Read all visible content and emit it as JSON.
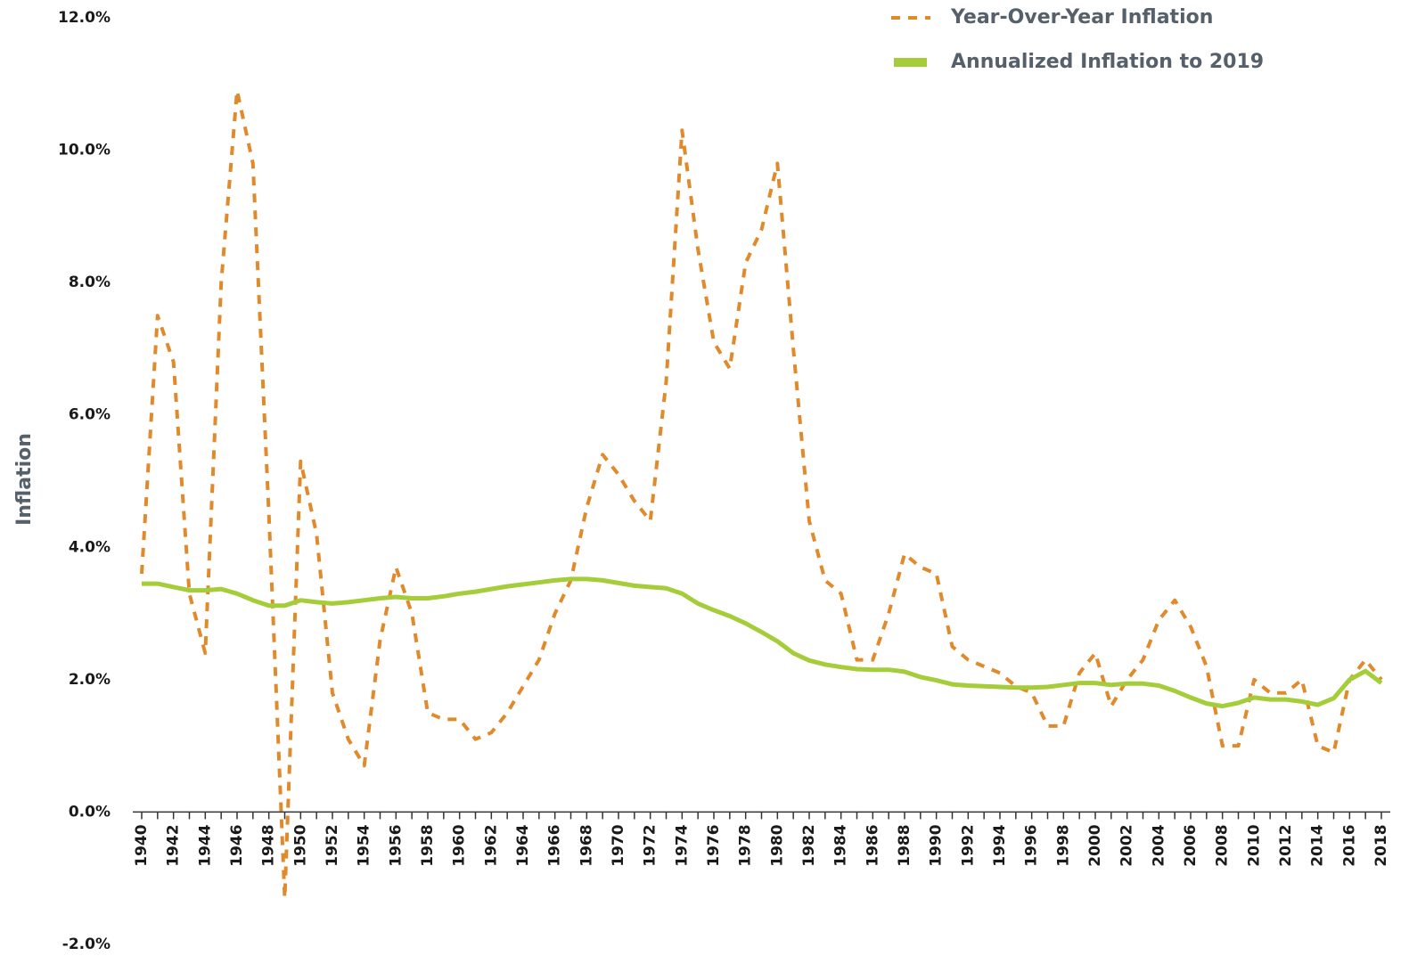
{
  "chart_data": {
    "type": "line",
    "y_label": "Inflation",
    "x": [
      1940,
      1941,
      1942,
      1943,
      1944,
      1945,
      1946,
      1947,
      1948,
      1949,
      1950,
      1951,
      1952,
      1953,
      1954,
      1955,
      1956,
      1957,
      1958,
      1959,
      1960,
      1961,
      1962,
      1963,
      1964,
      1965,
      1966,
      1967,
      1968,
      1969,
      1970,
      1971,
      1972,
      1973,
      1974,
      1975,
      1976,
      1977,
      1978,
      1979,
      1980,
      1981,
      1982,
      1983,
      1984,
      1985,
      1986,
      1987,
      1988,
      1989,
      1990,
      1991,
      1992,
      1993,
      1994,
      1995,
      1996,
      1997,
      1998,
      1999,
      2000,
      2001,
      2002,
      2003,
      2004,
      2005,
      2006,
      2007,
      2008,
      2009,
      2010,
      2011,
      2012,
      2013,
      2014,
      2015,
      2016,
      2017,
      2018
    ],
    "xlim": [
      1940,
      2018
    ],
    "xticks": [
      1940,
      1942,
      1944,
      1946,
      1948,
      1950,
      1952,
      1954,
      1956,
      1958,
      1960,
      1962,
      1964,
      1966,
      1968,
      1970,
      1972,
      1974,
      1976,
      1978,
      1980,
      1982,
      1984,
      1986,
      1988,
      1990,
      1992,
      1994,
      1996,
      1998,
      2000,
      2002,
      2004,
      2006,
      2008,
      2010,
      2012,
      2014,
      2016,
      2018
    ],
    "ylim": [
      -2,
      12
    ],
    "yticks": [
      {
        "value": -2,
        "label": "-2.0%"
      },
      {
        "value": 0,
        "label": "0.0%"
      },
      {
        "value": 2,
        "label": "2.0%"
      },
      {
        "value": 4,
        "label": "4.0%"
      },
      {
        "value": 6,
        "label": "6.0%"
      },
      {
        "value": 8,
        "label": "8.0%"
      },
      {
        "value": 10,
        "label": "10.0%"
      },
      {
        "value": 12,
        "label": "12.0%"
      }
    ],
    "grid": false,
    "legend": "top-right",
    "series": [
      {
        "name": "Year-Over-Year Inflation",
        "color": "#e08a2c",
        "dashed": true,
        "values": [
          3.6,
          7.5,
          6.8,
          3.3,
          2.4,
          8.0,
          10.9,
          9.8,
          4.5,
          -1.3,
          5.3,
          4.2,
          1.8,
          1.1,
          0.7,
          2.6,
          3.7,
          3.0,
          1.5,
          1.4,
          1.4,
          1.1,
          1.2,
          1.5,
          1.9,
          2.3,
          3.0,
          3.5,
          4.6,
          5.4,
          5.1,
          4.7,
          4.4,
          6.5,
          10.3,
          8.5,
          7.1,
          6.7,
          8.3,
          8.8,
          9.8,
          7.0,
          4.4,
          3.5,
          3.3,
          2.3,
          2.3,
          3.0,
          3.9,
          3.7,
          3.6,
          2.5,
          2.3,
          2.2,
          2.1,
          1.9,
          1.8,
          1.3,
          1.3,
          2.1,
          2.4,
          1.6,
          2.0,
          2.3,
          2.9,
          3.2,
          2.8,
          2.2,
          1.0,
          1.0,
          2.0,
          1.8,
          1.8,
          2.0,
          1.0,
          0.9,
          2.0,
          2.3,
          2.0
        ]
      },
      {
        "name": "Annualized Inflation to 2019",
        "color": "#a4cd39",
        "dashed": false,
        "values": [
          3.45,
          3.45,
          3.4,
          3.35,
          3.35,
          3.37,
          3.3,
          3.2,
          3.12,
          3.12,
          3.2,
          3.17,
          3.15,
          3.17,
          3.2,
          3.23,
          3.25,
          3.23,
          3.23,
          3.26,
          3.3,
          3.33,
          3.37,
          3.41,
          3.44,
          3.47,
          3.5,
          3.52,
          3.52,
          3.5,
          3.46,
          3.42,
          3.4,
          3.38,
          3.3,
          3.15,
          3.05,
          2.96,
          2.85,
          2.72,
          2.58,
          2.4,
          2.29,
          2.23,
          2.19,
          2.16,
          2.15,
          2.15,
          2.12,
          2.04,
          1.99,
          1.93,
          1.91,
          1.9,
          1.89,
          1.88,
          1.88,
          1.89,
          1.92,
          1.95,
          1.95,
          1.92,
          1.94,
          1.94,
          1.91,
          1.83,
          1.73,
          1.64,
          1.6,
          1.65,
          1.73,
          1.7,
          1.7,
          1.67,
          1.62,
          1.72,
          2.0,
          2.13,
          1.95
        ]
      }
    ]
  }
}
